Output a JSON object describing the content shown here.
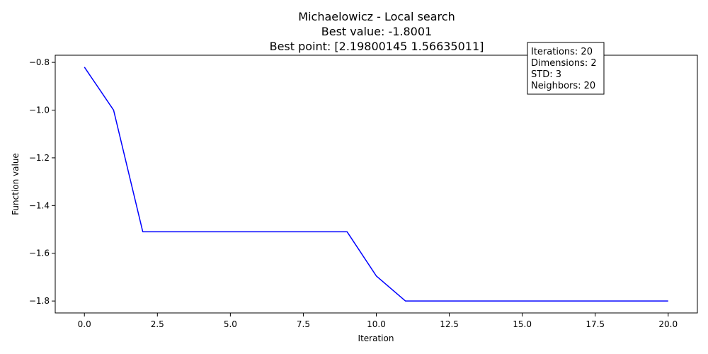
{
  "chart_data": {
    "type": "line",
    "title_lines": [
      "Michaelowicz - Local search",
      "Best value: -1.8001",
      "Best point: [2.19800145 1.56635011]"
    ],
    "xlabel": "Iteration",
    "ylabel": "Function value",
    "xlim": [
      -1.0,
      21.0
    ],
    "ylim": [
      -1.85,
      -0.77
    ],
    "x_ticks": [
      0.0,
      2.5,
      5.0,
      7.5,
      10.0,
      12.5,
      15.0,
      17.5,
      20.0
    ],
    "x_tick_labels": [
      "0.0",
      "2.5",
      "5.0",
      "7.5",
      "10.0",
      "12.5",
      "15.0",
      "17.5",
      "20.0"
    ],
    "y_ticks": [
      -0.8,
      -1.0,
      -1.2,
      -1.4,
      -1.6,
      -1.8
    ],
    "y_tick_labels": [
      "−0.8",
      "−1.0",
      "−1.2",
      "−1.4",
      "−1.6",
      "−1.8"
    ],
    "grid": false,
    "series": [
      {
        "color": "#0000ff",
        "x": [
          0,
          1,
          2,
          3,
          4,
          5,
          6,
          7,
          8,
          9,
          10,
          11,
          12,
          13,
          14,
          15,
          16,
          17,
          18,
          19,
          20
        ],
        "y": [
          -0.82,
          -1.0,
          -1.51,
          -1.51,
          -1.51,
          -1.51,
          -1.51,
          -1.51,
          -1.51,
          -1.51,
          -1.695,
          -1.8001,
          -1.8001,
          -1.8001,
          -1.8001,
          -1.8001,
          -1.8001,
          -1.8001,
          -1.8001,
          -1.8001,
          -1.8001
        ]
      }
    ],
    "info_box": {
      "lines": [
        "Iterations: 20",
        "Dimensions: 2",
        "STD: 3",
        "Neighbors: 20"
      ],
      "placement": "top-right"
    }
  }
}
